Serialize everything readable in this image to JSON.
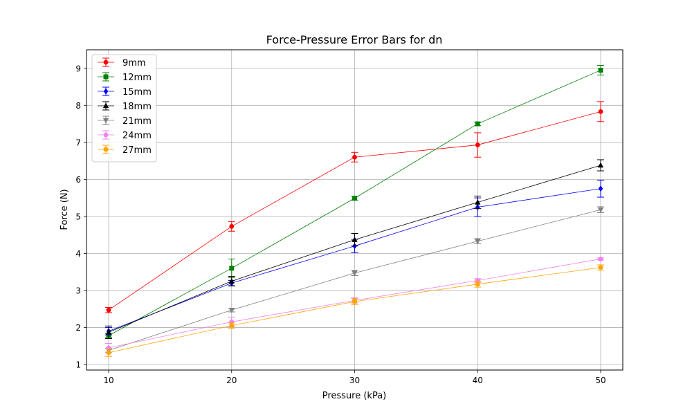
{
  "chart_data": {
    "type": "line",
    "title": "Force-Pressure Error Bars for dn",
    "xlabel": "Pressure (kPa)",
    "ylabel": "Force (N)",
    "x": [
      10,
      20,
      30,
      40,
      50
    ],
    "xlim": [
      8.2,
      51.8
    ],
    "ylim": [
      0.85,
      9.5
    ],
    "xticks": [
      10,
      20,
      30,
      40,
      50
    ],
    "yticks": [
      1,
      2,
      3,
      4,
      5,
      6,
      7,
      8,
      9
    ],
    "grid": true,
    "legend_position": "top-left",
    "series": [
      {
        "name": "9mm",
        "color": "#ff0000",
        "marker": "circle",
        "values": [
          2.47,
          4.73,
          6.6,
          6.93,
          7.83
        ],
        "errors": [
          0.07,
          0.13,
          0.13,
          0.33,
          0.27
        ]
      },
      {
        "name": "12mm",
        "color": "#008000",
        "marker": "square",
        "values": [
          1.78,
          3.6,
          5.49,
          7.5,
          8.95
        ],
        "errors": [
          0.05,
          0.25,
          0.05,
          0.05,
          0.13
        ]
      },
      {
        "name": "15mm",
        "color": "#0000ff",
        "marker": "diamond",
        "values": [
          1.9,
          3.2,
          4.2,
          5.25,
          5.75
        ],
        "errors": [
          0.1,
          0.07,
          0.18,
          0.25,
          0.23
        ]
      },
      {
        "name": "18mm",
        "color": "#000000",
        "marker": "triangle-up",
        "values": [
          1.87,
          3.25,
          4.37,
          5.38,
          6.38
        ],
        "errors": [
          0.17,
          0.13,
          0.17,
          0.17,
          0.15
        ]
      },
      {
        "name": "21mm",
        "color": "#808080",
        "marker": "triangle-down",
        "values": [
          1.38,
          2.47,
          3.47,
          4.33,
          5.18
        ],
        "errors": [
          0.05,
          0.05,
          0.07,
          0.07,
          0.08
        ]
      },
      {
        "name": "24mm",
        "color": "#ee82ee",
        "marker": "pentagon",
        "values": [
          1.45,
          2.15,
          2.73,
          3.27,
          3.85
        ],
        "errors": [
          0.12,
          0.13,
          0.07,
          0.05,
          0.03
        ]
      },
      {
        "name": "27mm",
        "color": "#ffa500",
        "marker": "hexagon",
        "values": [
          1.32,
          2.05,
          2.7,
          3.17,
          3.62
        ],
        "errors": [
          0.1,
          0.07,
          0.08,
          0.08,
          0.07
        ]
      }
    ]
  }
}
